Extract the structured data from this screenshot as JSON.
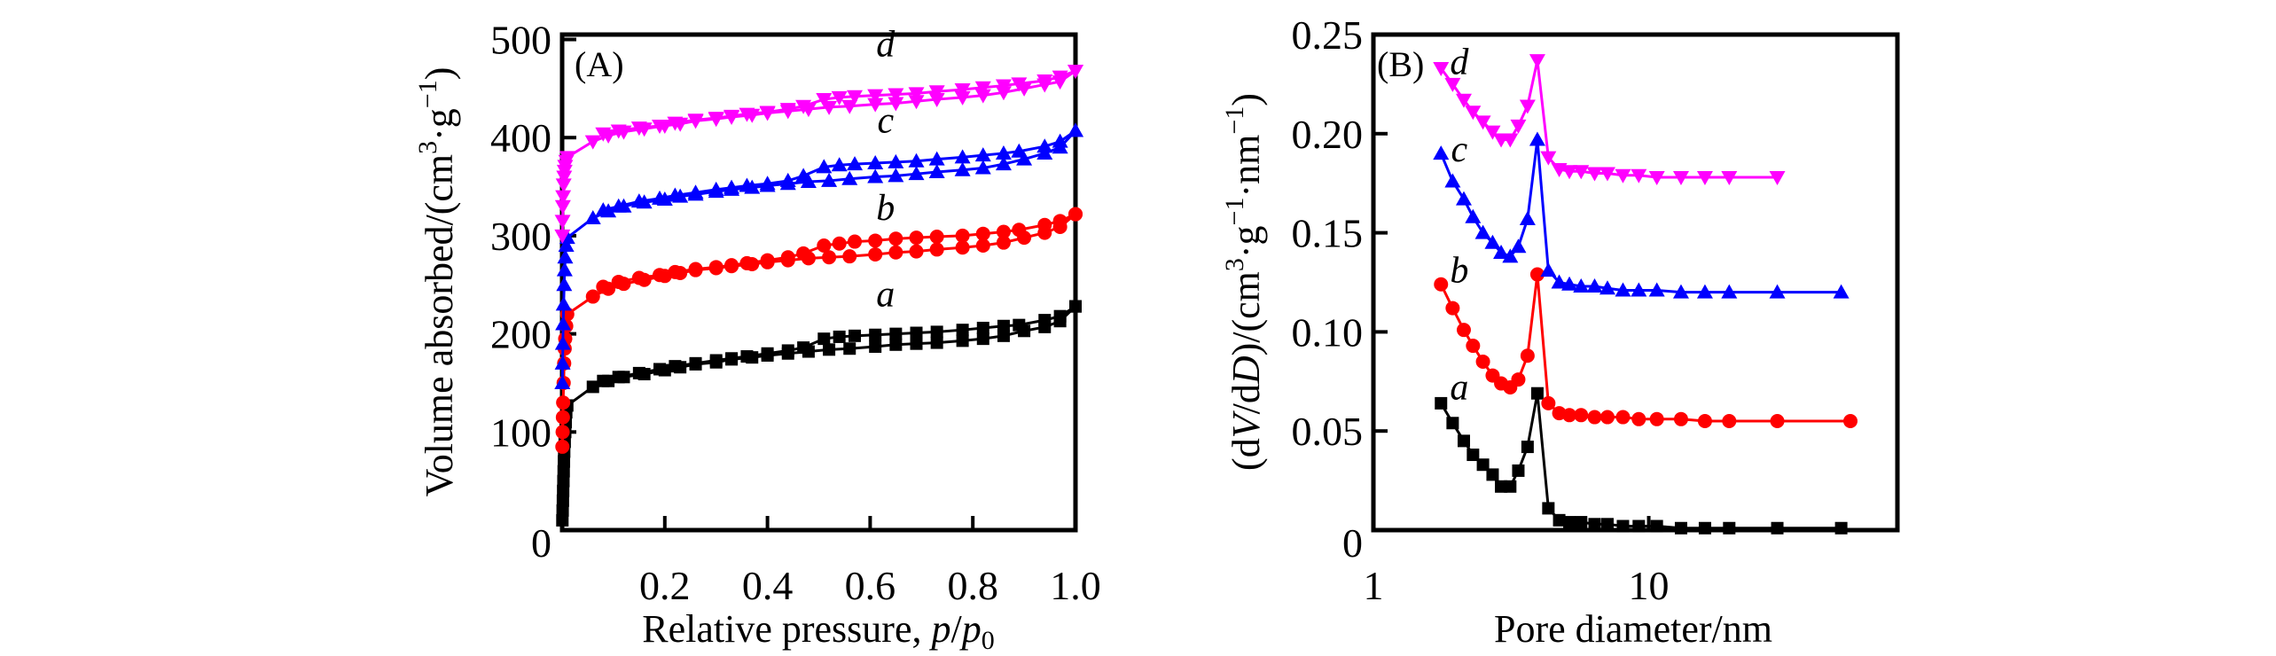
{
  "chart_data": [
    {
      "type": "line",
      "panel_label": "(A)",
      "title": "",
      "xlabel": "Relative pressure, p/p0",
      "xlabel_parts": {
        "main": "Relative pressure, ",
        "italic": "p",
        "slash": "/",
        "italic2": "p",
        "sub": "0"
      },
      "ylabel": "Volume absorbed/(cm³·g⁻¹)",
      "ylabel_parts": {
        "main": "Volume absorbed/(cm",
        "sup1": "3",
        "mid": "·g",
        "sup2": "−1",
        "end": ")"
      },
      "xlim": [
        0,
        1.0
      ],
      "ylim": [
        0,
        505
      ],
      "xticks": [
        0.2,
        0.4,
        0.6,
        0.8,
        1.0
      ],
      "xtick_labels": [
        "0.2",
        "0.4",
        "0.6",
        "0.8",
        "1.0"
      ],
      "yticks": [
        0,
        100,
        200,
        300,
        400,
        500
      ],
      "ytick_labels": [
        "0",
        "100",
        "200",
        "300",
        "400",
        "500"
      ],
      "grid": false,
      "legend": "none (inline italic labels a, b, c, d)",
      "series": [
        {
          "name": "a",
          "color": "#000000",
          "marker": "square",
          "label_at": [
            0.63,
            228
          ],
          "adsorption": {
            "x": [
              0.0005,
              0.001,
              0.0015,
              0.002,
              0.0025,
              0.003,
              0.0035,
              0.004,
              0.005,
              0.006,
              0.007,
              0.008,
              0.01,
              0.06,
              0.09,
              0.12,
              0.16,
              0.2,
              0.23,
              0.26,
              0.3,
              0.33,
              0.37,
              0.4,
              0.44,
              0.48,
              0.52,
              0.56,
              0.61,
              0.65,
              0.69,
              0.73,
              0.78,
              0.82,
              0.86,
              0.9,
              0.94,
              0.97,
              1.0
            ],
            "y": [
              10,
              20,
              30,
              40,
              50,
              60,
              70,
              80,
              90,
              100,
              110,
              120,
              127,
              146,
              152,
              156,
              159,
              163,
              166,
              169,
              171,
              174,
              176,
              178,
              180,
              182,
              184,
              185,
              187,
              189,
              190,
              191,
              193,
              195,
              198,
              203,
              207,
              213,
              228
            ]
          },
          "desorption": {
            "x": [
              1.0,
              0.97,
              0.94,
              0.89,
              0.86,
              0.82,
              0.78,
              0.73,
              0.69,
              0.65,
              0.61,
              0.57,
              0.54,
              0.51,
              0.47,
              0.44,
              0.4,
              0.36,
              0.33,
              0.3,
              0.26,
              0.22,
              0.19,
              0.15,
              0.11,
              0.08
            ],
            "y": [
              228,
              218,
              214,
              209,
              208,
              206,
              204,
              202,
              201,
              200,
              199,
              198,
              197,
              195,
              186,
              183,
              180,
              177,
              175,
              173,
              170,
              167,
              164,
              160,
              156,
              152
            ]
          }
        },
        {
          "name": "b",
          "color": "#FF0000",
          "marker": "circle",
          "label_at": [
            0.63,
            316
          ],
          "adsorption": {
            "x": [
              0.0005,
              0.001,
              0.0015,
              0.002,
              0.003,
              0.004,
              0.005,
              0.006,
              0.008,
              0.01,
              0.06,
              0.09,
              0.12,
              0.16,
              0.2,
              0.23,
              0.26,
              0.3,
              0.33,
              0.37,
              0.4,
              0.44,
              0.48,
              0.52,
              0.56,
              0.61,
              0.65,
              0.69,
              0.73,
              0.78,
              0.82,
              0.86,
              0.9,
              0.94,
              0.97,
              1.0
            ],
            "y": [
              85,
              100,
              115,
              130,
              150,
              170,
              185,
              195,
              208,
              220,
              238,
              246,
              251,
              255,
              259,
              262,
              265,
              267,
              269,
              271,
              273,
              275,
              277,
              278,
              279,
              281,
              283,
              284,
              286,
              288,
              290,
              293,
              298,
              303,
              309,
              322
            ]
          },
          "desorption": {
            "x": [
              1.0,
              0.97,
              0.94,
              0.89,
              0.86,
              0.82,
              0.78,
              0.73,
              0.69,
              0.65,
              0.61,
              0.57,
              0.54,
              0.51,
              0.47,
              0.44,
              0.4,
              0.36,
              0.33,
              0.3,
              0.26,
              0.22,
              0.19,
              0.15,
              0.11,
              0.08
            ],
            "y": [
              322,
              315,
              311,
              306,
              304,
              302,
              300,
              299,
              298,
              297,
              295,
              294,
              292,
              290,
              282,
              278,
              275,
              272,
              270,
              268,
              266,
              263,
              260,
              257,
              253,
              248
            ]
          }
        },
        {
          "name": "c",
          "color": "#0000FF",
          "marker": "triangle-up",
          "label_at": [
            0.63,
            405
          ],
          "adsorption": {
            "x": [
              0.0005,
              0.001,
              0.0015,
              0.002,
              0.003,
              0.004,
              0.005,
              0.006,
              0.008,
              0.01,
              0.06,
              0.09,
              0.12,
              0.16,
              0.2,
              0.23,
              0.26,
              0.3,
              0.33,
              0.37,
              0.4,
              0.44,
              0.48,
              0.52,
              0.56,
              0.61,
              0.65,
              0.69,
              0.73,
              0.78,
              0.82,
              0.86,
              0.9,
              0.94,
              0.97,
              1.0
            ],
            "y": [
              150,
              170,
              190,
              210,
              230,
              250,
              265,
              278,
              290,
              298,
              318,
              325,
              330,
              334,
              337,
              340,
              342,
              345,
              347,
              349,
              351,
              353,
              355,
              356,
              358,
              360,
              361,
              363,
              365,
              367,
              369,
              373,
              378,
              384,
              390,
              407
            ]
          },
          "desorption": {
            "x": [
              1.0,
              0.97,
              0.94,
              0.89,
              0.86,
              0.82,
              0.78,
              0.73,
              0.69,
              0.65,
              0.61,
              0.57,
              0.54,
              0.51,
              0.47,
              0.44,
              0.4,
              0.36,
              0.33,
              0.3,
              0.26,
              0.22,
              0.19,
              0.15,
              0.11,
              0.08
            ],
            "y": [
              407,
              396,
              391,
              386,
              384,
              382,
              380,
              378,
              376,
              375,
              374,
              373,
              372,
              370,
              361,
              356,
              353,
              351,
              349,
              347,
              344,
              341,
              338,
              335,
              330,
              326
            ]
          }
        },
        {
          "name": "d",
          "color": "#FF00FF",
          "marker": "triangle-down",
          "label_at": [
            0.63,
            483
          ],
          "adsorption": {
            "x": [
              0.0005,
              0.001,
              0.0015,
              0.002,
              0.003,
              0.004,
              0.005,
              0.006,
              0.008,
              0.01,
              0.06,
              0.09,
              0.12,
              0.16,
              0.2,
              0.23,
              0.26,
              0.3,
              0.33,
              0.37,
              0.4,
              0.44,
              0.48,
              0.52,
              0.56,
              0.61,
              0.65,
              0.69,
              0.73,
              0.78,
              0.82,
              0.86,
              0.9,
              0.94,
              0.97,
              1.0
            ],
            "y": [
              300,
              315,
              330,
              340,
              352,
              360,
              366,
              371,
              376,
              380,
              396,
              402,
              406,
              409,
              412,
              414,
              417,
              419,
              421,
              423,
              425,
              427,
              429,
              431,
              432,
              434,
              435,
              437,
              439,
              441,
              443,
              446,
              450,
              454,
              457,
              468
            ]
          },
          "desorption": {
            "x": [
              1.0,
              0.97,
              0.94,
              0.89,
              0.86,
              0.82,
              0.78,
              0.73,
              0.69,
              0.65,
              0.61,
              0.57,
              0.54,
              0.51,
              0.47,
              0.44,
              0.4,
              0.36,
              0.33,
              0.3,
              0.26,
              0.22,
              0.19,
              0.15,
              0.11,
              0.08
            ],
            "y": [
              468,
              462,
              458,
              455,
              453,
              451,
              449,
              447,
              445,
              444,
              443,
              442,
              441,
              439,
              432,
              429,
              426,
              424,
              422,
              420,
              418,
              415,
              412,
              410,
              407,
              404
            ]
          }
        }
      ]
    },
    {
      "type": "line",
      "panel_label": "(B)",
      "title": "",
      "xlabel": "Pore diameter/nm",
      "ylabel": "(dV/dD)/(cm³·g⁻¹·nm⁻¹)",
      "ylabel_parts": {
        "open": "(d",
        "V": "V",
        "slash": "/d",
        "D": "D",
        "mid": ")/(cm",
        "sup1": "3",
        "g": "·g",
        "sup2": "−1",
        "nm": "·nm",
        "sup3": "−1",
        "end": ")"
      },
      "xscale": "log",
      "xlim": [
        1,
        80
      ],
      "ylim": [
        0,
        0.25
      ],
      "xticks": [
        1,
        10
      ],
      "xtick_labels": [
        "1",
        "10"
      ],
      "yticks": [
        0,
        0.05,
        0.1,
        0.15,
        0.2,
        0.25
      ],
      "ytick_labels": [
        "0",
        "0.05",
        "0.10",
        "0.15",
        "0.20",
        "0.25"
      ],
      "grid": false,
      "legend": "none (inline italic labels a, b, c, d)",
      "series": [
        {
          "name": "a",
          "color": "#000000",
          "marker": "square",
          "label_at": [
            2.05,
            0.066
          ],
          "x": [
            1.76,
            1.94,
            2.13,
            2.3,
            2.5,
            2.71,
            2.91,
            3.14,
            3.36,
            3.63,
            3.94,
            4.32,
            4.73,
            5.15,
            5.68,
            6.36,
            7.08,
            8.06,
            9.2,
            10.7,
            13.1,
            16.0,
            19.6,
            29.3,
            50.0
          ],
          "y": [
            0.064,
            0.054,
            0.045,
            0.038,
            0.033,
            0.028,
            0.022,
            0.022,
            0.03,
            0.042,
            0.069,
            0.011,
            0.005,
            0.004,
            0.004,
            0.003,
            0.003,
            0.002,
            0.002,
            0.002,
            0.001,
            0.001,
            0.001,
            0.001,
            0.001
          ]
        },
        {
          "name": "b",
          "color": "#FF0000",
          "marker": "circle",
          "label_at": [
            2.05,
            0.125
          ],
          "x": [
            1.76,
            1.94,
            2.13,
            2.3,
            2.5,
            2.71,
            2.91,
            3.14,
            3.36,
            3.63,
            3.94,
            4.32,
            4.73,
            5.15,
            5.68,
            6.36,
            7.08,
            8.06,
            9.2,
            10.7,
            13.1,
            16.0,
            19.6,
            29.3,
            54.0
          ],
          "y": [
            0.124,
            0.112,
            0.101,
            0.093,
            0.085,
            0.078,
            0.074,
            0.072,
            0.076,
            0.088,
            0.129,
            0.064,
            0.059,
            0.058,
            0.058,
            0.057,
            0.057,
            0.057,
            0.056,
            0.056,
            0.056,
            0.055,
            0.055,
            0.055,
            0.055
          ]
        },
        {
          "name": "c",
          "color": "#0000FF",
          "marker": "triangle-up",
          "label_at": [
            2.05,
            0.186
          ],
          "x": [
            1.76,
            1.94,
            2.13,
            2.3,
            2.5,
            2.71,
            2.91,
            3.14,
            3.36,
            3.63,
            3.94,
            4.32,
            4.73,
            5.15,
            5.68,
            6.36,
            7.08,
            8.06,
            9.2,
            10.7,
            13.1,
            16.0,
            19.6,
            29.3,
            50.0
          ],
          "y": [
            0.19,
            0.176,
            0.167,
            0.158,
            0.15,
            0.145,
            0.14,
            0.138,
            0.143,
            0.157,
            0.197,
            0.131,
            0.125,
            0.124,
            0.123,
            0.123,
            0.122,
            0.121,
            0.121,
            0.121,
            0.12,
            0.12,
            0.12,
            0.12,
            0.12
          ]
        },
        {
          "name": "d",
          "color": "#FF00FF",
          "marker": "triangle-down",
          "label_at": [
            2.05,
            0.23
          ],
          "x": [
            1.76,
            1.94,
            2.13,
            2.3,
            2.5,
            2.71,
            2.91,
            3.14,
            3.36,
            3.63,
            3.94,
            4.32,
            4.73,
            5.15,
            5.68,
            6.36,
            7.08,
            8.06,
            9.2,
            10.7,
            13.1,
            16.0,
            19.6,
            29.3
          ],
          "y": [
            0.233,
            0.225,
            0.217,
            0.211,
            0.206,
            0.201,
            0.197,
            0.197,
            0.204,
            0.214,
            0.237,
            0.188,
            0.182,
            0.181,
            0.181,
            0.18,
            0.18,
            0.179,
            0.179,
            0.178,
            0.178,
            0.178,
            0.178,
            0.178
          ]
        }
      ]
    }
  ]
}
